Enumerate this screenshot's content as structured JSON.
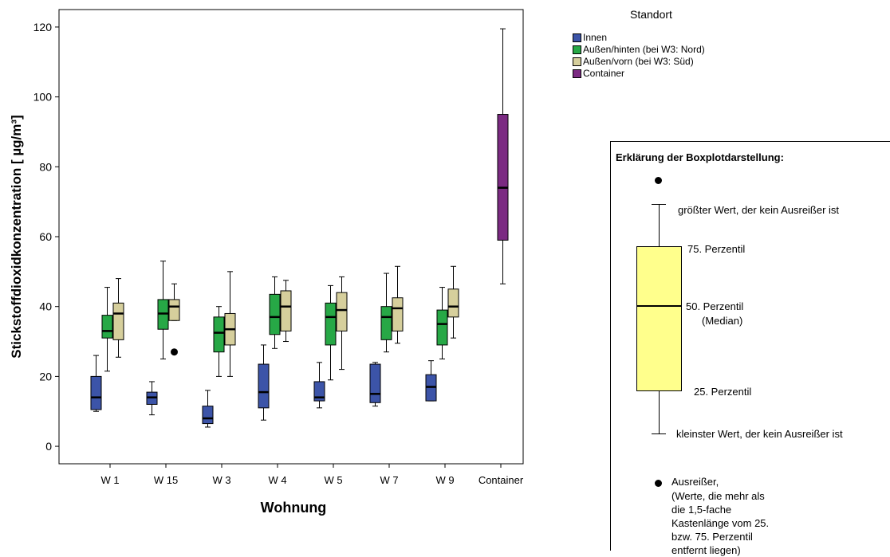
{
  "colors": {
    "Innen": "#3c54a8",
    "Außen/hinten (bei W3: Nord)": "#27a846",
    "Außen/vorn (bei W3: Süd)": "#d6cf9c",
    "Container": "#7b2a82",
    "explain_box_fill": "#ffff8c"
  },
  "chart_data": {
    "type": "boxplot",
    "xlabel": "Wohnung",
    "ylabel": "Stickstoffdioxidkonzentration [ µg/m³]",
    "ylim": [
      -5,
      125
    ],
    "yticks": [
      0,
      20,
      40,
      60,
      80,
      100,
      120
    ],
    "categories": [
      "W 1",
      "W 15",
      "W 3",
      "W 4",
      "W 5",
      "W 7",
      "W 9",
      "Container"
    ],
    "legend_title": "Standort",
    "legend_position": "top-right",
    "series": [
      {
        "name": "Innen",
        "boxes": [
          {
            "category": "W 1",
            "min": 10,
            "q1": 10.5,
            "median": 14,
            "q3": 20,
            "max": 26
          },
          {
            "category": "W 15",
            "min": 9,
            "q1": 12,
            "median": 14,
            "q3": 15.5,
            "max": 18.5
          },
          {
            "category": "W 3",
            "min": 5.5,
            "q1": 6.5,
            "median": 8,
            "q3": 11.5,
            "max": 16
          },
          {
            "category": "W 4",
            "min": 7.5,
            "q1": 11,
            "median": 15.5,
            "q3": 23.5,
            "max": 29
          },
          {
            "category": "W 5",
            "min": 11,
            "q1": 13,
            "median": 14,
            "q3": 18.5,
            "max": 24
          },
          {
            "category": "W 7",
            "min": 11.5,
            "q1": 12.5,
            "median": 15,
            "q3": 23.5,
            "max": 24
          },
          {
            "category": "W 9",
            "min": 13,
            "q1": 13,
            "median": 17,
            "q3": 20.5,
            "max": 24.5
          }
        ]
      },
      {
        "name": "Außen/hinten (bei W3: Nord)",
        "boxes": [
          {
            "category": "W 1",
            "min": 21.5,
            "q1": 31,
            "median": 33,
            "q3": 37.5,
            "max": 45.5
          },
          {
            "category": "W 15",
            "min": 25,
            "q1": 33.5,
            "median": 38,
            "q3": 42,
            "max": 53
          },
          {
            "category": "W 3",
            "min": 20,
            "q1": 27,
            "median": 32.5,
            "q3": 37,
            "max": 40
          },
          {
            "category": "W 4",
            "min": 28,
            "q1": 32,
            "median": 37,
            "q3": 43.5,
            "max": 48.5
          },
          {
            "category": "W 5",
            "min": 19,
            "q1": 29,
            "median": 37,
            "q3": 41,
            "max": 46
          },
          {
            "category": "W 7",
            "min": 27,
            "q1": 30.5,
            "median": 37,
            "q3": 40,
            "max": 49.5
          },
          {
            "category": "W 9",
            "min": 25,
            "q1": 29,
            "median": 35,
            "q3": 39,
            "max": 45.5
          }
        ]
      },
      {
        "name": "Außen/vorn (bei W3: Süd)",
        "boxes": [
          {
            "category": "W 1",
            "min": 25.5,
            "q1": 30.5,
            "median": 38,
            "q3": 41,
            "max": 48
          },
          {
            "category": "W 15",
            "min": 36,
            "q1": 36,
            "median": 40,
            "q3": 42,
            "max": 46.5,
            "outliers": [
              27
            ]
          },
          {
            "category": "W 3",
            "min": 20,
            "q1": 29,
            "median": 33.5,
            "q3": 38,
            "max": 50
          },
          {
            "category": "W 4",
            "min": 30,
            "q1": 33,
            "median": 40,
            "q3": 44.5,
            "max": 47.5
          },
          {
            "category": "W 5",
            "min": 22,
            "q1": 33,
            "median": 39,
            "q3": 44,
            "max": 48.5
          },
          {
            "category": "W 7",
            "min": 29.5,
            "q1": 33,
            "median": 39.5,
            "q3": 42.5,
            "max": 51.5
          },
          {
            "category": "W 9",
            "min": 31,
            "q1": 37,
            "median": 40,
            "q3": 45,
            "max": 51.5
          }
        ]
      },
      {
        "name": "Container",
        "boxes": [
          {
            "category": "Container",
            "min": 46.5,
            "q1": 59,
            "median": 74,
            "q3": 95,
            "max": 119.5
          }
        ]
      }
    ]
  },
  "legend": {
    "title": "Standort",
    "items": [
      "Innen",
      "Außen/hinten (bei W3: Nord)",
      "Außen/vorn (bei W3: Süd)",
      "Container"
    ]
  },
  "explanation": {
    "title": "Erklärung der Boxplotdarstellung:",
    "max_label": "größter Wert, der kein Ausreißer ist",
    "p75": "75. Perzentil",
    "p50": "50. Perzentil",
    "median": "(Median)",
    "p25": "25. Perzentil",
    "min_label": "kleinster Wert, der kein Ausreißer ist",
    "outlier_label": "Ausreißer,",
    "outlier_desc": "(Werte, die mehr als\ndie 1,5-fache\nKastenlänge vom 25.\nbzw. 75. Perzentil\nentfernt liegen)"
  }
}
